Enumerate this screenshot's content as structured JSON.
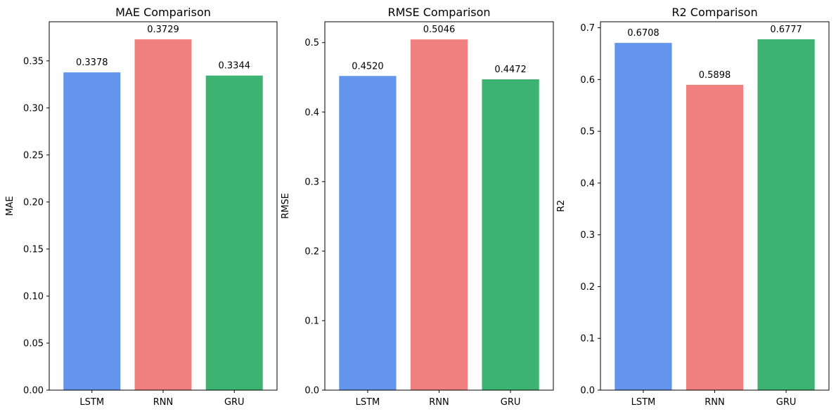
{
  "chart_data": [
    {
      "type": "bar",
      "title": "MAE Comparison",
      "xlabel": "",
      "ylabel": "MAE",
      "categories": [
        "LSTM",
        "RNN",
        "GRU"
      ],
      "values": [
        0.3378,
        0.3729,
        0.3344
      ],
      "data_labels": [
        "0.3378",
        "0.3729",
        "0.3344"
      ],
      "colors": [
        "#6495ED",
        "#F08080",
        "#3CB371"
      ],
      "ylim": [
        0,
        0.3916
      ],
      "yticks": [
        0,
        0.05,
        0.1,
        0.15,
        0.2,
        0.25,
        0.3,
        0.35
      ],
      "ytick_labels": [
        "0.00",
        "0.05",
        "0.10",
        "0.15",
        "0.20",
        "0.25",
        "0.30",
        "0.35"
      ],
      "grid": false
    },
    {
      "type": "bar",
      "title": "RMSE Comparison",
      "xlabel": "",
      "ylabel": "RMSE",
      "categories": [
        "LSTM",
        "RNN",
        "GRU"
      ],
      "values": [
        0.452,
        0.5046,
        0.4472
      ],
      "data_labels": [
        "0.4520",
        "0.5046",
        "0.4472"
      ],
      "colors": [
        "#6495ED",
        "#F08080",
        "#3CB371"
      ],
      "ylim": [
        0,
        0.53
      ],
      "yticks": [
        0,
        0.1,
        0.2,
        0.3,
        0.4,
        0.5
      ],
      "ytick_labels": [
        "0.0",
        "0.1",
        "0.2",
        "0.3",
        "0.4",
        "0.5"
      ],
      "grid": false
    },
    {
      "type": "bar",
      "title": "R2 Comparison",
      "xlabel": "",
      "ylabel": "R2",
      "categories": [
        "LSTM",
        "RNN",
        "GRU"
      ],
      "values": [
        0.6708,
        0.5898,
        0.6777
      ],
      "data_labels": [
        "0.6708",
        "0.5898",
        "0.6777"
      ],
      "colors": [
        "#6495ED",
        "#F08080",
        "#3CB371"
      ],
      "ylim": [
        0,
        0.7116
      ],
      "yticks": [
        0,
        0.1,
        0.2,
        0.3,
        0.4,
        0.5,
        0.6,
        0.7
      ],
      "ytick_labels": [
        "0.0",
        "0.1",
        "0.2",
        "0.3",
        "0.4",
        "0.5",
        "0.6",
        "0.7"
      ],
      "grid": false
    }
  ]
}
